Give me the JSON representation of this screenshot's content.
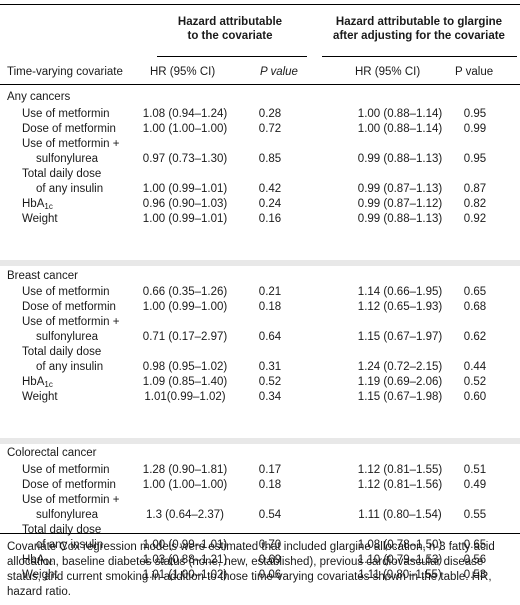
{
  "header": {
    "col_group_1": "Hazard attributable to the covariate",
    "col_group_1_line1": "Hazard attributable",
    "col_group_1_line2": "to the covariate",
    "col_group_2_line1": "Hazard attributable to glargine",
    "col_group_2_line2": "after adjusting for the covariate",
    "row_header": "Time-varying covariate",
    "hr1": "HR (95% CI)",
    "p1": "P value",
    "hr2": "HR (95% CI)",
    "p2": "P value"
  },
  "sections": [
    {
      "title": "Any cancers",
      "rows": [
        {
          "label": "Use of metformin",
          "hr1": "1.08 (0.94–1.24)",
          "p1": "0.28",
          "hr2": "1.00 (0.88–1.14)",
          "p2": "0.95"
        },
        {
          "label": "Dose of metformin",
          "hr1": "1.00 (1.00–1.00)",
          "p1": "0.72",
          "hr2": "1.00 (0.88–1.14)",
          "p2": "0.99"
        },
        {
          "label": "Use of metformin +",
          "label2": "sulfonylurea",
          "hr1": "0.97 (0.73–1.30)",
          "p1": "0.85",
          "hr2": "0.99 (0.88–1.13)",
          "p2": "0.95"
        },
        {
          "label": "Total daily dose",
          "label2": "of any insulin",
          "hr1": "1.00 (0.99–1.01)",
          "p1": "0.42",
          "hr2": "0.99 (0.87–1.13)",
          "p2": "0.87"
        },
        {
          "label": "HbA",
          "sub": "1c",
          "hr1": "0.96 (0.90–1.03)",
          "p1": "0.24",
          "hr2": "0.99 (0.87–1.12)",
          "p2": "0.82"
        },
        {
          "label": "Weight",
          "hr1": "1.00 (0.99–1.01)",
          "p1": "0.16",
          "hr2": "0.99 (0.88–1.13)",
          "p2": "0.92"
        }
      ]
    },
    {
      "title": "Breast cancer",
      "rows": [
        {
          "label": "Use of metformin",
          "hr1": "0.66 (0.35–1.26)",
          "p1": "0.21",
          "hr2": "1.14 (0.66–1.95)",
          "p2": "0.65"
        },
        {
          "label": "Dose of metformin",
          "hr1": "1.00 (0.99–1.00)",
          "p1": "0.18",
          "hr2": "1.12 (0.65–1.93)",
          "p2": "0.68"
        },
        {
          "label": "Use of metformin +",
          "label2": "sulfonylurea",
          "hr1": "0.71 (0.17–2.97)",
          "p1": "0.64",
          "hr2": "1.15 (0.67–1.97)",
          "p2": "0.62"
        },
        {
          "label": "Total daily dose",
          "label2": "of any insulin",
          "hr1": "0.98 (0.95–1.02)",
          "p1": "0.31",
          "hr2": "1.24 (0.72–2.15)",
          "p2": "0.44"
        },
        {
          "label": "HbA",
          "sub": "1c",
          "hr1": "1.09 (0.85–1.40)",
          "p1": "0.52",
          "hr2": "1.19 (0.69–2.06)",
          "p2": "0.52"
        },
        {
          "label": "Weight",
          "hr1": "1.01(0.99–1.02)",
          "p1": "0.34",
          "hr2": "1.15 (0.67–1.98)",
          "p2": "0.60"
        }
      ]
    },
    {
      "title": "Colorectal cancer",
      "rows": [
        {
          "label": "Use of metformin",
          "hr1": "1.28 (0.90–1.81)",
          "p1": "0.17",
          "hr2": "1.12 (0.81–1.55)",
          "p2": "0.51"
        },
        {
          "label": "Dose of metformin",
          "hr1": "1.00 (1.00–1.00)",
          "p1": "0.18",
          "hr2": "1.12 (0.81–1.56)",
          "p2": "0.49"
        },
        {
          "label": "Use of metformin +",
          "label2": "sulfonylurea",
          "hr1": "1.3 (0.64–2.37)",
          "p1": "0.54",
          "hr2": "1.11 (0.80–1.54)",
          "p2": "0.55"
        },
        {
          "label": "Total daily dose",
          "label2": "of any insulin",
          "hr1": "1.00 (0.99–1.01)",
          "p1": "0.70",
          "hr2": "1.08 (0.78–1.50)",
          "p2": "0.65"
        },
        {
          "label": "HbA",
          "sub": "1c",
          "hr1": "1.03 (0.88–1.21)",
          "p1": "0.69",
          "hr2": "1.10 (0.79–1.53)",
          "p2": "0.56"
        },
        {
          "label": "Weight",
          "hr1": "1.01 (1.00–1.02)",
          "p1": "0.06",
          "hr2": "1.11 (0.80–1.55)",
          "p2": "0.53"
        }
      ]
    }
  ],
  "footnote": "Covariate Cox regression models were estimated that included glargine allocation, n-3 fatty acid allocation, baseline diabetes status (none, new, established), previous cardiovascular disease status, and current smoking in addition to those time-varying covariates shown in the table. HR, hazard ratio."
}
